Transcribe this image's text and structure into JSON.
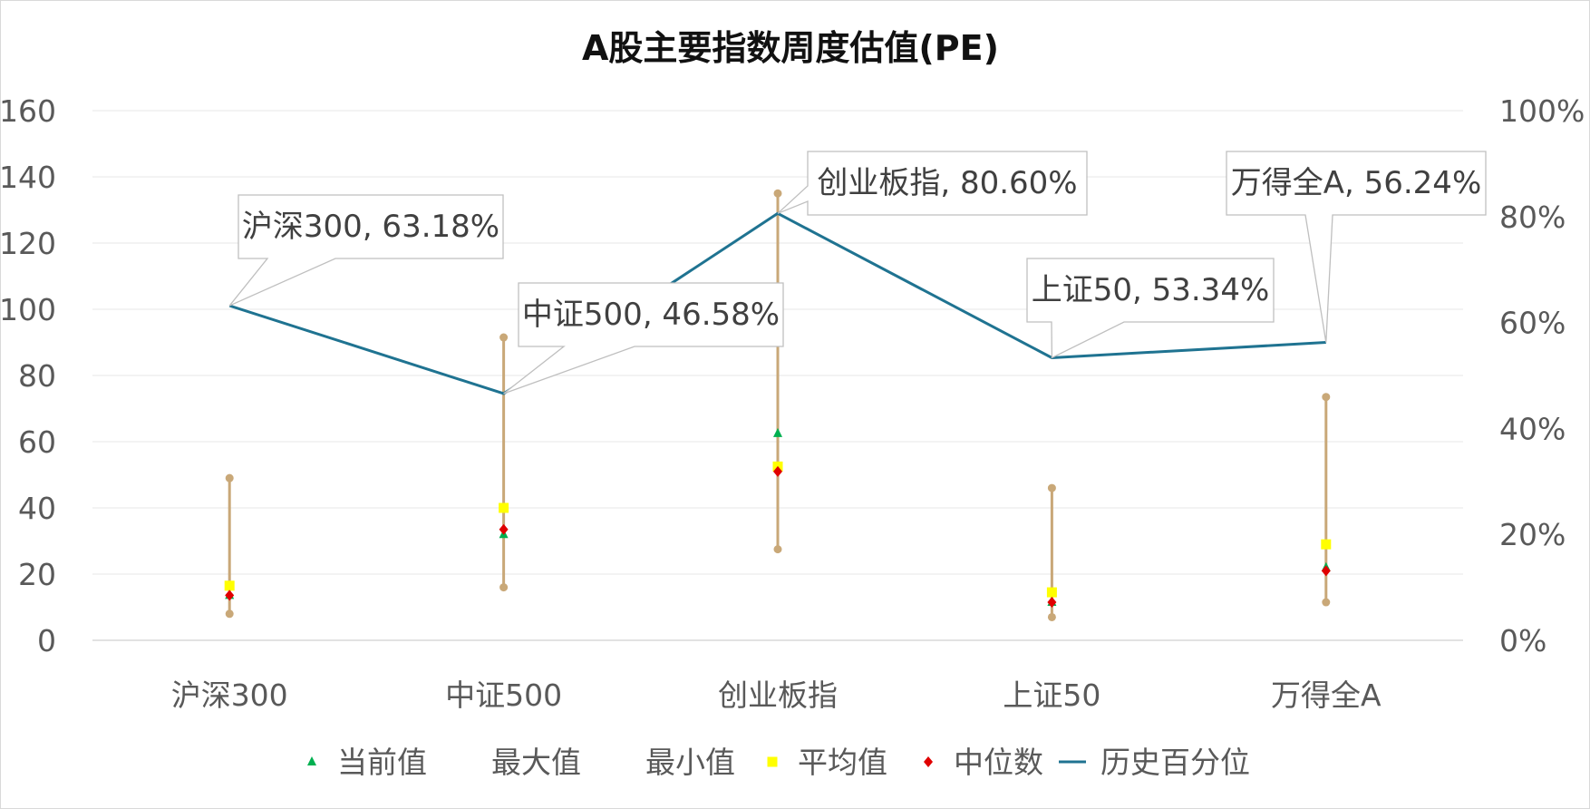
{
  "chart_data": {
    "type": "line",
    "title": "A股主要指数周度估值(PE)",
    "categories": [
      "沪深300",
      "中证500",
      "创业板指",
      "上证50",
      "万得全A"
    ],
    "y_left": {
      "ylim": [
        0,
        160
      ],
      "ticks": [
        "0",
        "20",
        "40",
        "60",
        "80",
        "100",
        "120",
        "140",
        "160"
      ]
    },
    "y_right": {
      "ylim": [
        0,
        1
      ],
      "ticks": [
        "0%",
        "20%",
        "40%",
        "60%",
        "80%",
        "100%"
      ]
    },
    "grid": true,
    "legend_position": "bottom",
    "series": [
      {
        "name": "当前值",
        "kind": "marker-triangle",
        "color": "#00b050",
        "values": [
          13.6,
          32.0,
          62.5,
          11.5,
          22.0
        ]
      },
      {
        "name": "最大值",
        "kind": "marker-circle",
        "color": "#c9a878",
        "values": [
          49.0,
          91.5,
          135.0,
          46.0,
          73.5
        ]
      },
      {
        "name": "最小值",
        "kind": "marker-circle",
        "color": "#c9a878",
        "values": [
          8.0,
          16.0,
          27.5,
          7.0,
          11.5
        ]
      },
      {
        "name": "平均值",
        "kind": "marker-square",
        "color": "#ffff00",
        "values": [
          16.5,
          40.0,
          52.5,
          14.5,
          29.0
        ]
      },
      {
        "name": "中位数",
        "kind": "marker-diamond",
        "color": "#e00000",
        "values": [
          13.6,
          33.5,
          51.0,
          11.5,
          21.0
        ]
      },
      {
        "name": "历史百分位",
        "kind": "line",
        "axis": "right",
        "color": "#1f7391",
        "values": [
          0.6318,
          0.4658,
          0.806,
          0.5334,
          0.5624
        ]
      }
    ],
    "data_labels": [
      "沪深300, 63.18%",
      "中证500, 46.58%",
      "创业板指, 80.60%",
      "上证50, 53.34%",
      "万得全A, 56.24%"
    ],
    "range_color": "#c9a878"
  }
}
